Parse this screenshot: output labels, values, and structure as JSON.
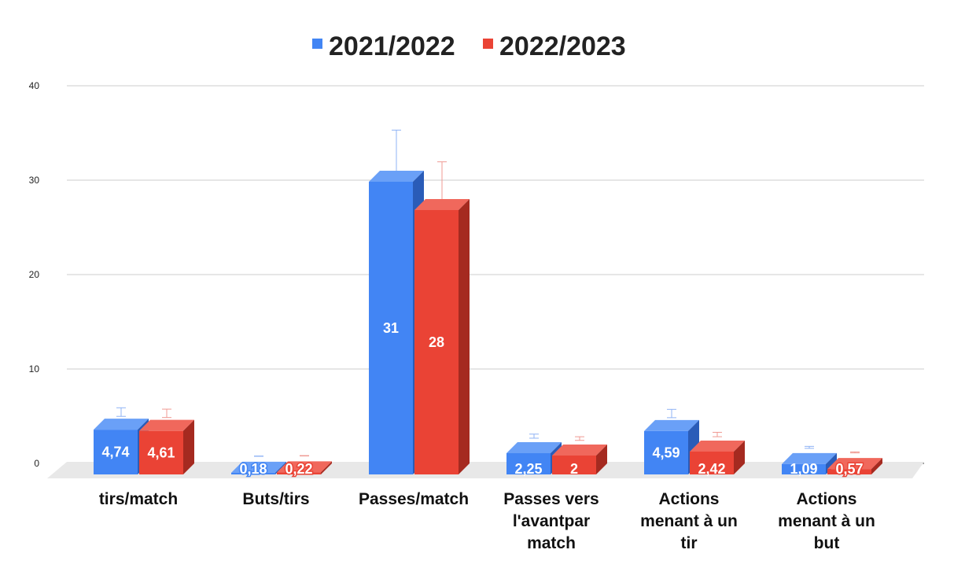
{
  "chart_data": {
    "type": "bar",
    "title": "",
    "xlabel": "",
    "ylabel": "",
    "ylim": [
      0,
      40
    ],
    "yticks": [
      0,
      10,
      20,
      30,
      40
    ],
    "grid": true,
    "legend_position": "top-center",
    "style": "3d-bar",
    "error_bars": true,
    "categories": [
      [
        "tirs/match"
      ],
      [
        "Buts/tirs"
      ],
      [
        "Passes/match"
      ],
      [
        "Passes vers",
        "l'avantpar",
        "match"
      ],
      [
        "Actions",
        "menant à un",
        "tir"
      ],
      [
        "Actions",
        "menant à un",
        "but"
      ]
    ],
    "series": [
      {
        "name": "2021/2022",
        "color": "#4285f4",
        "side_color": "#2a5cb8",
        "top_color": "#6aa0f7",
        "values": [
          4.74,
          0.18,
          31,
          2.25,
          4.59,
          1.09
        ],
        "labels": [
          "4,74",
          "0,18",
          "31",
          "2,25",
          "4,59",
          "1,09"
        ]
      },
      {
        "name": "2022/2023",
        "color": "#ea4335",
        "side_color": "#a52a20",
        "top_color": "#f0685c",
        "values": [
          4.61,
          0.22,
          28,
          2,
          2.42,
          0.57
        ],
        "labels": [
          "4,61",
          "0,22",
          "28",
          "2",
          "2,42",
          "0,57"
        ]
      }
    ]
  }
}
